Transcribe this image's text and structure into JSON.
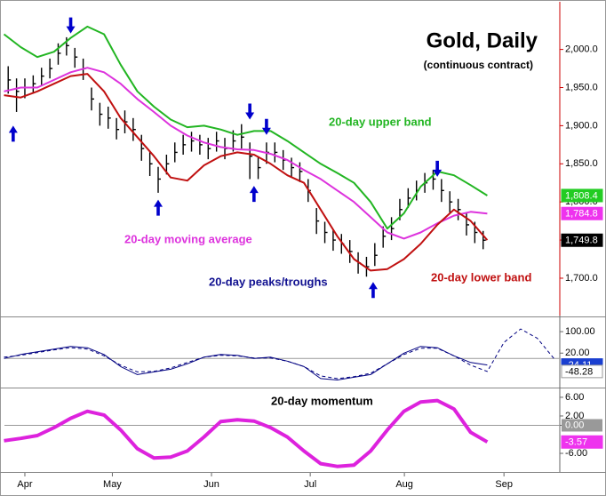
{
  "chart_data": [
    {
      "type": "ohlc",
      "title": "Gold, Daily",
      "subtitle": "(continuous contract)",
      "xlim": [
        -4.9,
        128.4
      ],
      "xticks": [
        {
          "value": 0,
          "label": "Apr"
        },
        {
          "value": 21,
          "label": "May"
        },
        {
          "value": 44.8,
          "label": "Jun"
        },
        {
          "value": 68.5,
          "label": "Jul"
        },
        {
          "value": 91.1,
          "label": "Aug"
        },
        {
          "value": 115,
          "label": "Sep"
        }
      ],
      "ylim": [
        1651,
        2059
      ],
      "yticks": [
        {
          "value": 1700,
          "label": "1,700.0"
        },
        {
          "value": 1750,
          "label": "1,750.0"
        },
        {
          "value": 1800,
          "label": "1,800.0"
        },
        {
          "value": 1850,
          "label": "1,850.0"
        },
        {
          "value": 1900,
          "label": "1,900.0"
        },
        {
          "value": 1950,
          "label": "1,950.0"
        },
        {
          "value": 2000,
          "label": "2,000.0"
        }
      ],
      "bars": {
        "color": "#000000",
        "x": [
          -4,
          -2,
          0,
          2,
          4,
          6,
          8,
          10,
          12,
          14,
          16,
          18,
          20,
          22,
          24,
          26,
          28,
          30,
          32,
          34,
          36,
          38,
          40,
          42,
          44,
          46,
          48,
          50,
          52,
          54,
          56,
          58,
          60,
          62,
          64,
          66,
          68,
          70,
          72,
          74,
          76,
          78,
          80,
          82,
          84,
          86,
          88,
          90,
          92,
          94,
          96,
          98,
          100,
          102,
          104,
          106,
          108,
          110
        ],
        "high": [
          1978,
          1962,
          1962,
          1966,
          1976,
          1988,
          2008,
          2016,
          2002,
          1988,
          1950,
          1930,
          1925,
          1910,
          1920,
          1910,
          1888,
          1866,
          1846,
          1862,
          1878,
          1888,
          1892,
          1888,
          1884,
          1892,
          1884,
          1894,
          1902,
          1878,
          1860,
          1878,
          1878,
          1868,
          1858,
          1852,
          1830,
          1792,
          1774,
          1764,
          1758,
          1750,
          1734,
          1728,
          1746,
          1768,
          1780,
          1804,
          1818,
          1828,
          1838,
          1842,
          1830,
          1814,
          1804,
          1786,
          1774,
          1762
        ],
        "low": [
          1942,
          1918,
          1936,
          1942,
          1952,
          1962,
          1980,
          1992,
          1976,
          1960,
          1920,
          1900,
          1896,
          1882,
          1890,
          1880,
          1854,
          1834,
          1812,
          1836,
          1852,
          1862,
          1866,
          1862,
          1856,
          1866,
          1856,
          1866,
          1870,
          1830,
          1830,
          1850,
          1852,
          1842,
          1832,
          1826,
          1800,
          1758,
          1746,
          1736,
          1732,
          1720,
          1706,
          1702,
          1716,
          1740,
          1750,
          1776,
          1792,
          1802,
          1812,
          1816,
          1800,
          1786,
          1776,
          1756,
          1746,
          1738
        ],
        "close": [
          1960,
          1945,
          1950,
          1955,
          1965,
          1975,
          1995,
          2005,
          1990,
          1975,
          1935,
          1915,
          1910,
          1895,
          1905,
          1895,
          1870,
          1850,
          1830,
          1850,
          1865,
          1875,
          1880,
          1875,
          1870,
          1880,
          1870,
          1880,
          1885,
          1860,
          1845,
          1865,
          1865,
          1855,
          1845,
          1840,
          1815,
          1775,
          1760,
          1750,
          1745,
          1735,
          1720,
          1715,
          1730,
          1755,
          1765,
          1790,
          1805,
          1815,
          1825,
          1830,
          1815,
          1800,
          1790,
          1770,
          1760,
          1749.8
        ],
        "last_label": {
          "value": 1749.8,
          "label": "1,749.8",
          "box": "#000000"
        }
      },
      "series": [
        {
          "name": "20-day upper band",
          "color": "#22b522",
          "x": [
            -5,
            -1,
            3,
            7,
            11,
            15,
            19,
            23,
            27,
            31,
            35,
            39,
            43,
            47,
            51,
            55,
            59,
            63,
            67,
            71,
            75,
            79,
            83,
            87,
            91,
            95,
            99,
            103,
            107,
            111
          ],
          "values": [
            2020,
            2003,
            1990,
            1997,
            2015,
            2030,
            2020,
            1980,
            1945,
            1925,
            1908,
            1898,
            1900,
            1895,
            1888,
            1893,
            1893,
            1880,
            1865,
            1850,
            1838,
            1825,
            1800,
            1765,
            1785,
            1820,
            1840,
            1835,
            1822,
            1808.4
          ],
          "last_label": {
            "value": 1808.4,
            "label": "1,808.4",
            "box": "#22cc22"
          }
        },
        {
          "name": "20-day moving average",
          "color": "#dd33dd",
          "x": [
            -5,
            -1,
            3,
            7,
            11,
            15,
            19,
            23,
            27,
            31,
            35,
            39,
            43,
            47,
            51,
            55,
            59,
            63,
            67,
            71,
            75,
            79,
            83,
            87,
            91,
            95,
            99,
            103,
            107,
            111
          ],
          "values": [
            1945,
            1950,
            1950,
            1960,
            1970,
            1976,
            1970,
            1955,
            1935,
            1918,
            1900,
            1887,
            1878,
            1872,
            1869,
            1868,
            1863,
            1855,
            1842,
            1830,
            1815,
            1800,
            1780,
            1760,
            1752,
            1760,
            1772,
            1782,
            1787,
            1784.8
          ],
          "last_label": {
            "value": 1784.8,
            "label": "1,784.8",
            "box": "#ee33ee"
          }
        },
        {
          "name": "20-day lower band",
          "color": "#c01010",
          "x": [
            -5,
            -1,
            3,
            7,
            11,
            15,
            19,
            23,
            27,
            31,
            35,
            39,
            43,
            47,
            51,
            55,
            59,
            63,
            67,
            71,
            75,
            79,
            83,
            87,
            91,
            95,
            99,
            103,
            107,
            111
          ],
          "values": [
            1940,
            1937,
            1945,
            1955,
            1965,
            1968,
            1945,
            1910,
            1885,
            1860,
            1832,
            1828,
            1848,
            1860,
            1865,
            1862,
            1850,
            1835,
            1825,
            1790,
            1755,
            1725,
            1710,
            1712,
            1725,
            1745,
            1770,
            1790,
            1775,
            1750
          ]
        }
      ],
      "peaks_troughs": {
        "name": "20-day peaks/troughs",
        "color": "#0000cc",
        "peaks": [
          {
            "x": 11,
            "y": 2021
          },
          {
            "x": 54,
            "y": 1908
          },
          {
            "x": 58,
            "y": 1888
          },
          {
            "x": 99,
            "y": 1833
          }
        ],
        "troughs": [
          {
            "x": -2.8,
            "y": 1900
          },
          {
            "x": 32,
            "y": 1803
          },
          {
            "x": 55,
            "y": 1821
          },
          {
            "x": 83.6,
            "y": 1695
          }
        ]
      }
    },
    {
      "type": "line",
      "xlim": [
        -4.9,
        128.4
      ],
      "ylim": [
        -105,
        150
      ],
      "reference": 0,
      "yticks": [
        {
          "value": 20,
          "label": "20.00"
        },
        {
          "value": 100,
          "label": "100.00"
        }
      ],
      "series": [
        {
          "color": "#000080",
          "dash": false,
          "x": [
            -5,
            -1,
            3,
            7,
            11,
            15,
            19,
            23,
            27,
            31,
            35,
            39,
            43,
            47,
            51,
            55,
            59,
            63,
            67,
            71,
            75,
            79,
            83,
            87,
            91,
            95,
            99,
            103,
            107,
            111
          ],
          "values": [
            0,
            15,
            25,
            35,
            45,
            40,
            15,
            -30,
            -60,
            -50,
            -40,
            -20,
            5,
            15,
            12,
            0,
            5,
            -10,
            -30,
            -75,
            -80,
            -70,
            -60,
            -20,
            20,
            45,
            40,
            10,
            -15,
            -24.11
          ],
          "last_label": {
            "value": -24.11,
            "label": "-24.11",
            "box": "#1a3fd0"
          }
        },
        {
          "color": "#000080",
          "dash": true,
          "x": [
            -5,
            -1,
            3,
            7,
            11,
            15,
            19,
            23,
            27,
            31,
            35,
            39,
            43,
            47,
            51,
            55,
            59,
            63,
            67,
            71,
            75,
            79,
            83,
            87,
            91,
            95,
            99,
            103,
            107,
            111,
            115,
            119,
            123,
            127
          ],
          "values": [
            5,
            12,
            22,
            32,
            40,
            35,
            10,
            -25,
            -50,
            -48,
            -35,
            -15,
            5,
            12,
            10,
            2,
            2,
            -10,
            -30,
            -65,
            -75,
            -68,
            -55,
            -20,
            15,
            38,
            38,
            10,
            -25,
            -48.28,
            60,
            110,
            75,
            0
          ],
          "last_label": {
            "value": -48.28,
            "label": "-48.28",
            "box": "#ffffff"
          }
        }
      ]
    },
    {
      "type": "line",
      "xlim": [
        -4.9,
        128.4
      ],
      "ylim": [
        -9.8,
        7.7
      ],
      "reference": 0,
      "yticks": [
        {
          "value": -6,
          "label": "-6.00"
        },
        {
          "value": 0,
          "label": "0.00"
        },
        {
          "value": 2,
          "label": "2.00"
        },
        {
          "value": 6,
          "label": "6.00"
        }
      ],
      "series": [
        {
          "name": "20-day momentum",
          "color": "#dd22dd",
          "dash": false,
          "x": [
            -5,
            -1,
            3,
            7,
            11,
            15,
            19,
            23,
            27,
            31,
            35,
            39,
            43,
            47,
            51,
            55,
            59,
            63,
            67,
            71,
            75,
            79,
            83,
            87,
            91,
            95,
            99,
            103,
            107,
            111
          ],
          "values": [
            -3.3,
            -2.8,
            -2.2,
            -0.5,
            1.5,
            3.0,
            2.2,
            -1.0,
            -5.0,
            -7.0,
            -6.8,
            -5.5,
            -2.5,
            0.8,
            1.2,
            0.9,
            -0.5,
            -2.5,
            -5.5,
            -8.2,
            -8.8,
            -8.5,
            -5.5,
            -1.0,
            3.0,
            5.0,
            5.3,
            3.5,
            -1.5,
            -3.57
          ],
          "last_label": {
            "value": -3.57,
            "label": "-3.57",
            "box": "#ee33ee"
          }
        }
      ]
    }
  ]
}
